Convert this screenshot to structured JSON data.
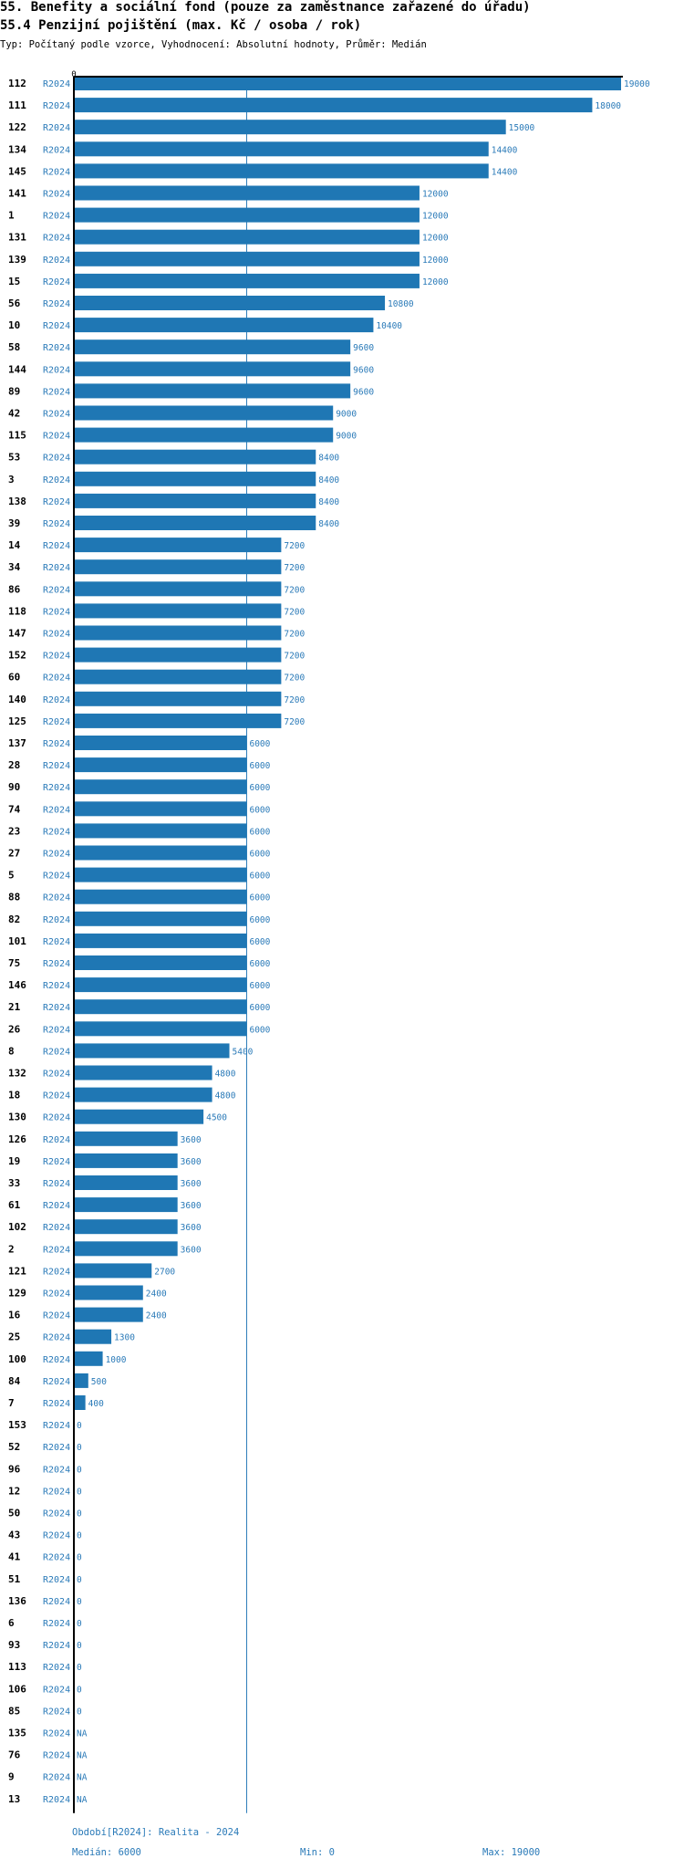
{
  "header": {
    "title1": "55. Benefity a sociální fond (pouze za zaměstnance zařazené do úřadu)",
    "title2": "55.4 Penzijní pojištění (max. Kč / osoba / rok)",
    "subtitle": "Typ: Počítaný podle vzorce, Vyhodnocení: Absolutní hodnoty, Průměr: Medián"
  },
  "footer": {
    "period": "Období[R2024]: Realita - 2024",
    "median": "Medián: 6000",
    "min": "Min: 0",
    "max": "Max: 19000"
  },
  "colors": {
    "bar": "#1f77b4",
    "label": "#2a7ab8",
    "axis": "#000000",
    "median_line": "#2a7ab8"
  },
  "chart_data": {
    "type": "bar",
    "orientation": "horizontal",
    "x_tick_label": "0",
    "xlim": [
      0,
      19000
    ],
    "median": 6000,
    "series_label": "R2024",
    "categories": [
      "112",
      "111",
      "122",
      "134",
      "145",
      "141",
      "1",
      "131",
      "139",
      "15",
      "56",
      "10",
      "58",
      "144",
      "89",
      "42",
      "115",
      "53",
      "3",
      "138",
      "39",
      "14",
      "34",
      "86",
      "118",
      "147",
      "152",
      "60",
      "140",
      "125",
      "137",
      "28",
      "90",
      "74",
      "23",
      "27",
      "5",
      "88",
      "82",
      "101",
      "75",
      "146",
      "21",
      "26",
      "8",
      "132",
      "18",
      "130",
      "126",
      "19",
      "33",
      "61",
      "102",
      "2",
      "121",
      "129",
      "16",
      "25",
      "100",
      "84",
      "7",
      "153",
      "52",
      "96",
      "12",
      "50",
      "43",
      "41",
      "51",
      "136",
      "6",
      "93",
      "113",
      "106",
      "85",
      "135",
      "76",
      "9",
      "13"
    ],
    "values": [
      19000,
      18000,
      15000,
      14400,
      14400,
      12000,
      12000,
      12000,
      12000,
      12000,
      10800,
      10400,
      9600,
      9600,
      9600,
      9000,
      9000,
      8400,
      8400,
      8400,
      8400,
      7200,
      7200,
      7200,
      7200,
      7200,
      7200,
      7200,
      7200,
      7200,
      6000,
      6000,
      6000,
      6000,
      6000,
      6000,
      6000,
      6000,
      6000,
      6000,
      6000,
      6000,
      6000,
      6000,
      5400,
      4800,
      4800,
      4500,
      3600,
      3600,
      3600,
      3600,
      3600,
      3600,
      2700,
      2400,
      2400,
      1300,
      1000,
      500,
      400,
      0,
      0,
      0,
      0,
      0,
      0,
      0,
      0,
      0,
      0,
      0,
      0,
      0,
      0,
      null,
      null,
      null,
      null
    ],
    "value_labels": [
      "19000",
      "18000",
      "15000",
      "14400",
      "14400",
      "12000",
      "12000",
      "12000",
      "12000",
      "12000",
      "10800",
      "10400",
      "9600",
      "9600",
      "9600",
      "9000",
      "9000",
      "8400",
      "8400",
      "8400",
      "8400",
      "7200",
      "7200",
      "7200",
      "7200",
      "7200",
      "7200",
      "7200",
      "7200",
      "7200",
      "6000",
      "6000",
      "6000",
      "6000",
      "6000",
      "6000",
      "6000",
      "6000",
      "6000",
      "6000",
      "6000",
      "6000",
      "6000",
      "6000",
      "5400",
      "4800",
      "4800",
      "4500",
      "3600",
      "3600",
      "3600",
      "3600",
      "3600",
      "3600",
      "2700",
      "2400",
      "2400",
      "1300",
      "1000",
      "500",
      "400",
      "0",
      "0",
      "0",
      "0",
      "0",
      "0",
      "0",
      "0",
      "0",
      "0",
      "0",
      "0",
      "0",
      "0",
      "NA",
      "NA",
      "NA",
      "NA"
    ]
  }
}
